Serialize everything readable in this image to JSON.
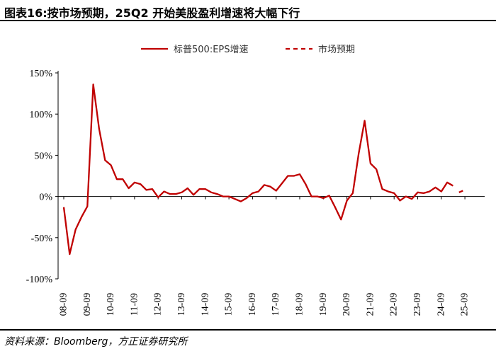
{
  "header": {
    "title": "图表16:按市场预期，25Q2 开始美股盈利增速将大幅下行"
  },
  "footer": {
    "source": "资料来源：Bloomberg，方正证券研究所"
  },
  "colors": {
    "series": "#c00000"
  },
  "chart_data": {
    "type": "line",
    "title": "",
    "xlabel": "",
    "ylabel": "",
    "ylim": [
      -100,
      150
    ],
    "yticks": [
      -100,
      -50,
      0,
      50,
      100,
      150
    ],
    "ytick_labels": [
      "-100%",
      "-50%",
      "0%",
      "50%",
      "100%",
      "150%"
    ],
    "xticks": [
      "08-09",
      "09-09",
      "10-09",
      "11-09",
      "12-09",
      "13-09",
      "14-09",
      "15-09",
      "16-09",
      "17-09",
      "18-09",
      "19-09",
      "20-09",
      "21-09",
      "22-09",
      "23-09",
      "24-09",
      "25-09"
    ],
    "legend": {
      "position": "top-center"
    },
    "grid": false,
    "series": [
      {
        "name": "标普500:EPS增速",
        "style": "solid",
        "points": [
          [
            "08-09",
            -13
          ],
          [
            "08-12",
            -70
          ],
          [
            "09-03",
            -40
          ],
          [
            "09-06",
            -25
          ],
          [
            "09-09",
            -12
          ],
          [
            "09-12",
            136
          ],
          [
            "10-03",
            82
          ],
          [
            "10-06",
            44
          ],
          [
            "10-09",
            38
          ],
          [
            "10-12",
            21
          ],
          [
            "11-03",
            21
          ],
          [
            "11-06",
            10
          ],
          [
            "11-09",
            17
          ],
          [
            "11-12",
            15
          ],
          [
            "12-03",
            8
          ],
          [
            "12-06",
            9
          ],
          [
            "12-09",
            -1
          ],
          [
            "12-12",
            6
          ],
          [
            "13-03",
            3
          ],
          [
            "13-06",
            3
          ],
          [
            "13-09",
            5
          ],
          [
            "13-12",
            10
          ],
          [
            "14-03",
            2
          ],
          [
            "14-06",
            9
          ],
          [
            "14-09",
            9
          ],
          [
            "14-12",
            5
          ],
          [
            "15-03",
            3
          ],
          [
            "15-06",
            0
          ],
          [
            "15-09",
            0
          ],
          [
            "15-12",
            -3
          ],
          [
            "16-03",
            -6
          ],
          [
            "16-06",
            -2
          ],
          [
            "16-09",
            4
          ],
          [
            "16-12",
            6
          ],
          [
            "17-03",
            14
          ],
          [
            "17-06",
            12
          ],
          [
            "17-09",
            7
          ],
          [
            "17-12",
            16
          ],
          [
            "18-03",
            25
          ],
          [
            "18-06",
            25
          ],
          [
            "18-09",
            27
          ],
          [
            "18-12",
            15
          ],
          [
            "19-03",
            0
          ],
          [
            "19-06",
            0
          ],
          [
            "19-09",
            -2
          ],
          [
            "19-12",
            1
          ],
          [
            "20-03",
            -13
          ],
          [
            "20-06",
            -28
          ],
          [
            "20-09",
            -5
          ],
          [
            "20-12",
            4
          ],
          [
            "21-03",
            52
          ],
          [
            "21-06",
            92
          ],
          [
            "21-09",
            40
          ],
          [
            "21-12",
            33
          ],
          [
            "22-03",
            9
          ],
          [
            "22-06",
            6
          ],
          [
            "22-09",
            4
          ],
          [
            "22-12",
            -5
          ],
          [
            "23-03",
            0
          ],
          [
            "23-06",
            -3
          ],
          [
            "23-09",
            5
          ],
          [
            "23-12",
            4
          ],
          [
            "24-03",
            6
          ],
          [
            "24-06",
            11
          ],
          [
            "24-09",
            6
          ],
          [
            "24-12",
            17
          ],
          [
            "25-03",
            13
          ]
        ]
      },
      {
        "name": "市场预期",
        "style": "dashed",
        "points": [
          [
            "25-06",
            5
          ],
          [
            "25-09",
            8
          ]
        ]
      }
    ]
  }
}
